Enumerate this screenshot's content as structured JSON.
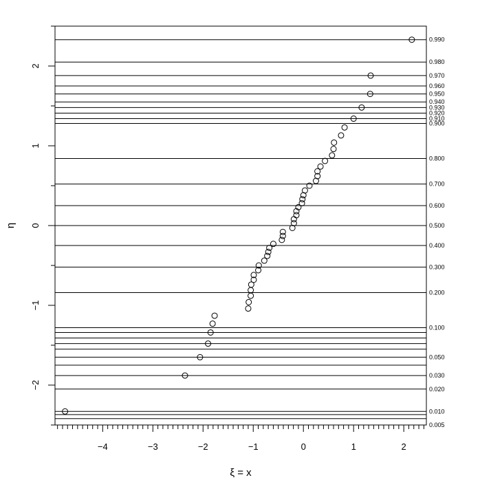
{
  "chart_data": {
    "type": "scatter",
    "title": "",
    "xlabel": "ξ = x",
    "ylabel": "η",
    "xlim": [
      -4.95,
      2.45
    ],
    "ylim": [
      -2.5,
      2.5
    ],
    "x_ticks": [
      -4,
      -3,
      -2,
      -1,
      0,
      1,
      2
    ],
    "x_tick_labels": [
      "−4",
      "−3",
      "−2",
      "−1",
      "0",
      "1",
      "2"
    ],
    "y_ticks": [
      -2,
      -1,
      0,
      1,
      2
    ],
    "y_tick_labels": [
      "−2",
      "−1",
      "0",
      "1",
      "2"
    ],
    "probability_axis": {
      "side": "right",
      "gridlines": [
        {
          "eta": -2.5,
          "label": "0.005"
        },
        {
          "eta": -2.42,
          "label": ""
        },
        {
          "eta": -2.37,
          "label": ""
        },
        {
          "eta": -2.33,
          "label": "0.010"
        },
        {
          "eta": -2.05,
          "label": "0.020"
        },
        {
          "eta": -1.88,
          "label": "0.030"
        },
        {
          "eta": -1.75,
          "label": ""
        },
        {
          "eta": -1.65,
          "label": "0.050"
        },
        {
          "eta": -1.55,
          "label": ""
        },
        {
          "eta": -1.48,
          "label": ""
        },
        {
          "eta": -1.41,
          "label": ""
        },
        {
          "eta": -1.34,
          "label": ""
        },
        {
          "eta": -1.28,
          "label": "0.100"
        },
        {
          "eta": -0.84,
          "label": "0.200"
        },
        {
          "eta": -0.52,
          "label": "0.300"
        },
        {
          "eta": -0.25,
          "label": "0.400"
        },
        {
          "eta": 0.0,
          "label": "0.500"
        },
        {
          "eta": 0.25,
          "label": "0.600"
        },
        {
          "eta": 0.52,
          "label": "0.700"
        },
        {
          "eta": 0.84,
          "label": "0.800"
        },
        {
          "eta": 1.28,
          "label": "0.900"
        },
        {
          "eta": 1.34,
          "label": "0.910"
        },
        {
          "eta": 1.41,
          "label": "0.920"
        },
        {
          "eta": 1.48,
          "label": "0.930"
        },
        {
          "eta": 1.55,
          "label": "0.940"
        },
        {
          "eta": 1.65,
          "label": "0.950"
        },
        {
          "eta": 1.75,
          "label": "0.960"
        },
        {
          "eta": 1.88,
          "label": "0.970"
        },
        {
          "eta": 2.05,
          "label": "0.980"
        },
        {
          "eta": 2.33,
          "label": "0.990"
        }
      ]
    },
    "series": [
      {
        "points": [
          {
            "x": -4.75,
            "y": -2.33
          },
          {
            "x": -2.36,
            "y": -1.88
          },
          {
            "x": -2.06,
            "y": -1.65
          },
          {
            "x": -1.9,
            "y": -1.48
          },
          {
            "x": -1.85,
            "y": -1.34
          },
          {
            "x": -1.81,
            "y": -1.23
          },
          {
            "x": -1.77,
            "y": -1.13
          },
          {
            "x": -1.1,
            "y": -1.04
          },
          {
            "x": -1.09,
            "y": -0.96
          },
          {
            "x": -1.05,
            "y": -0.88
          },
          {
            "x": -1.05,
            "y": -0.81
          },
          {
            "x": -1.04,
            "y": -0.74
          },
          {
            "x": -0.99,
            "y": -0.68
          },
          {
            "x": -0.99,
            "y": -0.62
          },
          {
            "x": -0.9,
            "y": -0.56
          },
          {
            "x": -0.89,
            "y": -0.5
          },
          {
            "x": -0.78,
            "y": -0.44
          },
          {
            "x": -0.72,
            "y": -0.38
          },
          {
            "x": -0.7,
            "y": -0.33
          },
          {
            "x": -0.68,
            "y": -0.28
          },
          {
            "x": -0.6,
            "y": -0.23
          },
          {
            "x": -0.43,
            "y": -0.18
          },
          {
            "x": -0.41,
            "y": -0.13
          },
          {
            "x": -0.41,
            "y": -0.08
          },
          {
            "x": -0.22,
            "y": -0.03
          },
          {
            "x": -0.19,
            "y": 0.03
          },
          {
            "x": -0.19,
            "y": 0.08
          },
          {
            "x": -0.14,
            "y": 0.13
          },
          {
            "x": -0.14,
            "y": 0.18
          },
          {
            "x": -0.1,
            "y": 0.23
          },
          {
            "x": -0.03,
            "y": 0.28
          },
          {
            "x": -0.02,
            "y": 0.33
          },
          {
            "x": 0.0,
            "y": 0.38
          },
          {
            "x": 0.03,
            "y": 0.44
          },
          {
            "x": 0.12,
            "y": 0.5
          },
          {
            "x": 0.25,
            "y": 0.56
          },
          {
            "x": 0.28,
            "y": 0.62
          },
          {
            "x": 0.28,
            "y": 0.68
          },
          {
            "x": 0.34,
            "y": 0.74
          },
          {
            "x": 0.43,
            "y": 0.81
          },
          {
            "x": 0.57,
            "y": 0.88
          },
          {
            "x": 0.6,
            "y": 0.96
          },
          {
            "x": 0.61,
            "y": 1.04
          },
          {
            "x": 0.75,
            "y": 1.13
          },
          {
            "x": 0.82,
            "y": 1.23
          },
          {
            "x": 1.0,
            "y": 1.34
          },
          {
            "x": 1.16,
            "y": 1.48
          },
          {
            "x": 1.33,
            "y": 1.65
          },
          {
            "x": 1.34,
            "y": 1.88
          },
          {
            "x": 2.16,
            "y": 2.33
          }
        ]
      }
    ]
  }
}
